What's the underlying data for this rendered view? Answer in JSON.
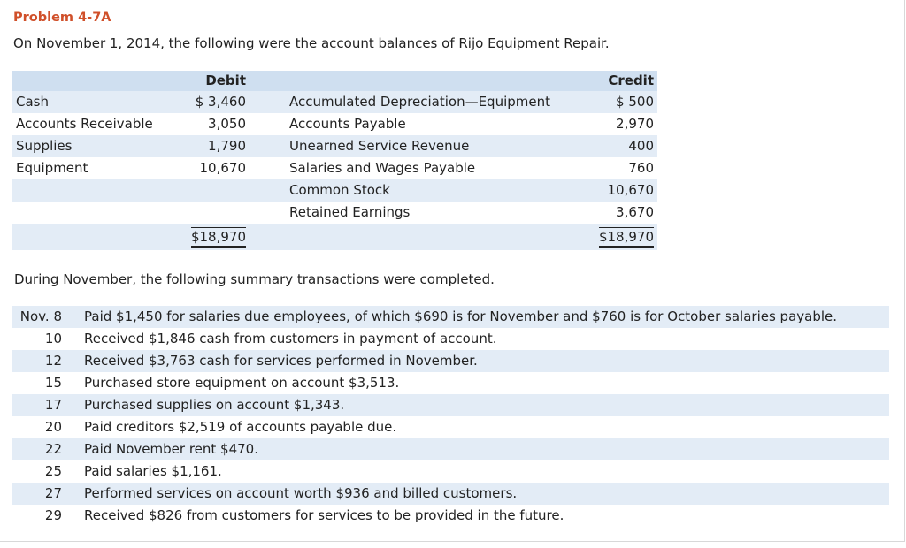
{
  "title": "Problem 4-7A",
  "intro": "On November 1, 2014, the following were the account balances of Rijo Equipment Repair.",
  "trial_balance": {
    "debit_header": "Debit",
    "credit_header": "Credit",
    "rows": [
      {
        "debit_account": "Cash",
        "debit": "$ 3,460",
        "credit_account": "Accumulated Depreciation—Equipment",
        "credit": "$ 500"
      },
      {
        "debit_account": "Accounts Receivable",
        "debit": "3,050",
        "credit_account": "Accounts Payable",
        "credit": "2,970"
      },
      {
        "debit_account": "Supplies",
        "debit": "1,790",
        "credit_account": "Unearned Service Revenue",
        "credit": "400"
      },
      {
        "debit_account": "Equipment",
        "debit": "10,670",
        "credit_account": "Salaries and Wages Payable",
        "credit": "760"
      },
      {
        "debit_account": "",
        "debit": "",
        "credit_account": "Common Stock",
        "credit": "10,670"
      },
      {
        "debit_account": "",
        "debit": "",
        "credit_account": "Retained Earnings",
        "credit": "3,670"
      }
    ],
    "debit_total": "$18,970",
    "credit_total": "$18,970"
  },
  "transactions_intro": "During November, the following summary transactions were completed.",
  "transactions": [
    {
      "date": "Nov. 8",
      "text": "Paid $1,450 for salaries due employees, of which $690 is for November and $760 is for October salaries payable."
    },
    {
      "date": "10",
      "text": "Received $1,846 cash from customers in payment of account."
    },
    {
      "date": "12",
      "text": "Received $3,763 cash for services performed in November."
    },
    {
      "date": "15",
      "text": "Purchased store equipment on account $3,513."
    },
    {
      "date": "17",
      "text": "Purchased supplies on account $1,343."
    },
    {
      "date": "20",
      "text": "Paid creditors $2,519 of accounts payable due."
    },
    {
      "date": "22",
      "text": "Paid November rent $470."
    },
    {
      "date": "25",
      "text": "Paid salaries $1,161."
    },
    {
      "date": "27",
      "text": "Performed services on account worth $936 and billed customers."
    },
    {
      "date": "29",
      "text": "Received $826 from customers for services to be provided in the future."
    }
  ],
  "colors": {
    "title": "#d0502a",
    "header_fill": "#cfdff0",
    "row_shade": "#e3ecf6"
  }
}
